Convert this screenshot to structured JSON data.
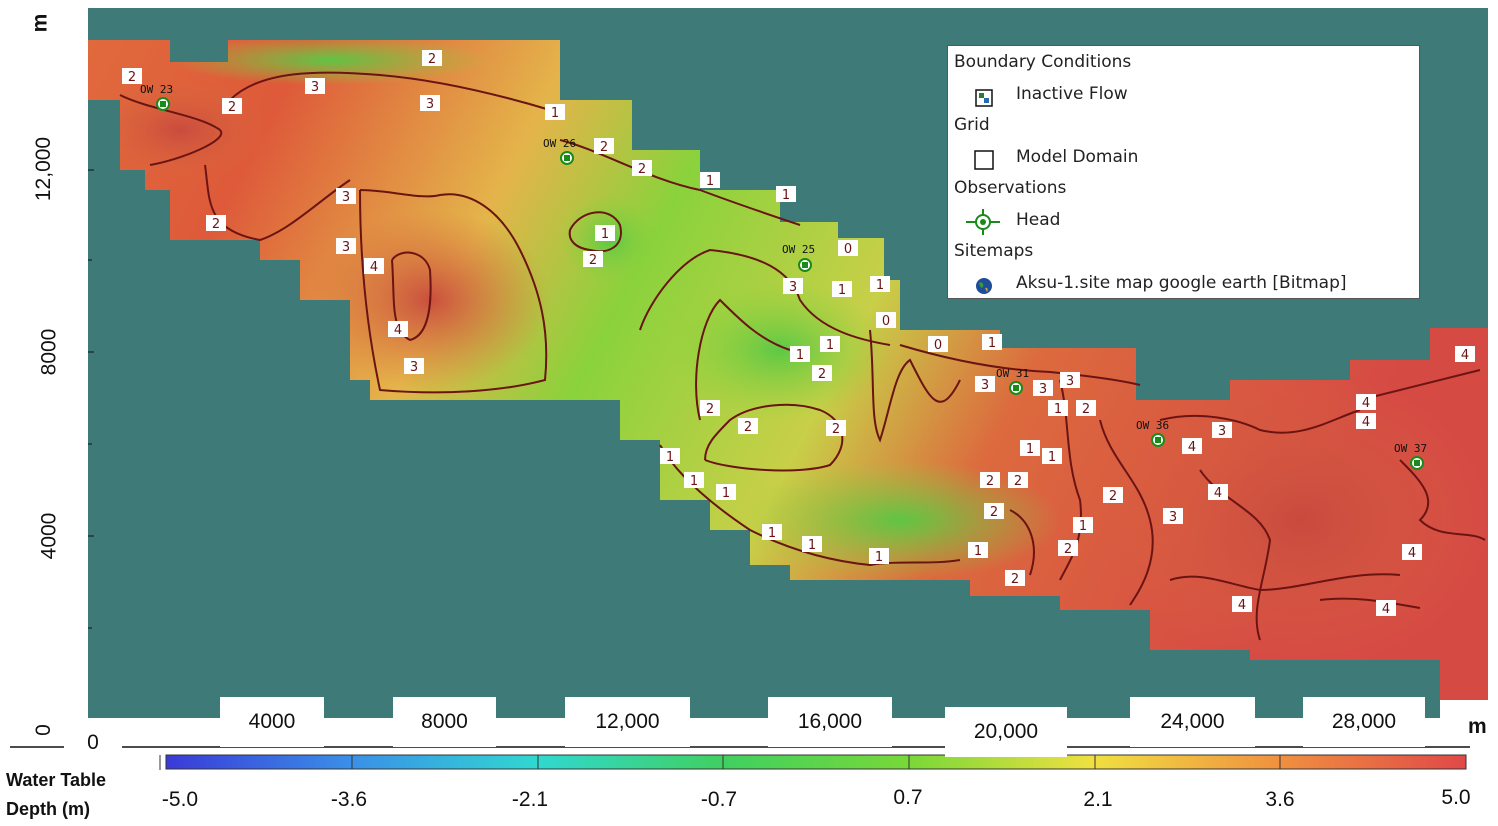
{
  "map": {
    "background_color": "#3d7a78",
    "contour_color": "#6b1414",
    "contour_values": [
      "0",
      "1",
      "2",
      "3",
      "4"
    ]
  },
  "legend": {
    "boundary_header": "Boundary Conditions",
    "inactive_flow": "Inactive Flow",
    "grid_header": "Grid",
    "model_domain": "Model Domain",
    "observations_header": "Observations",
    "head": "Head",
    "sitemaps_header": "Sitemaps",
    "sitemap_label": "Aksu-1.site map google earth [Bitmap]"
  },
  "wells": [
    "OW 23",
    "OW 26",
    "OW 25",
    "OW 31",
    "OW 36",
    "OW 37"
  ],
  "y_axis": {
    "unit": "m",
    "ticks": [
      "12,000",
      "8000",
      "4000",
      "0"
    ]
  },
  "x_axis": {
    "unit": "m",
    "ticks": [
      "0",
      "4000",
      "8000",
      "12,000",
      "16,000",
      "20,000",
      "24,000",
      "28,000"
    ]
  },
  "colorbar": {
    "title_line1": "Water Table",
    "title_line2": "Depth (m)",
    "labels": [
      "-5.0",
      "-3.6",
      "-2.1",
      "-0.7",
      "0.7",
      "2.1",
      "3.6",
      "5.0"
    ],
    "colors": [
      "#3a3ad8",
      "#3a90e8",
      "#30d8d0",
      "#40d060",
      "#78d838",
      "#f0e040",
      "#f09040",
      "#e04848"
    ]
  }
}
